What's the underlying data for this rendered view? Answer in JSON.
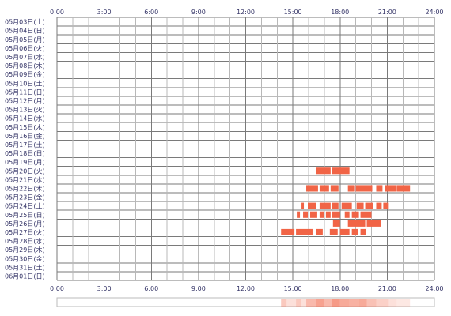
{
  "chart_data": {
    "type": "heatmap",
    "title": "",
    "xlabel": "",
    "ylabel": "",
    "x_ticks": [
      "0:00",
      "3:00",
      "6:00",
      "9:00",
      "12:00",
      "15:00",
      "18:00",
      "21:00",
      "24:00"
    ],
    "xlim": [
      0,
      24
    ],
    "grid": true,
    "rows": [
      "05月03日(土)",
      "05月04日(日)",
      "05月05日(月)",
      "05月06日(火)",
      "05月07日(水)",
      "05月08日(木)",
      "05月09日(金)",
      "05月10日(土)",
      "05月11日(日)",
      "05月12日(月)",
      "05月13日(火)",
      "05月14日(水)",
      "05月15日(木)",
      "05月16日(金)",
      "05月17日(土)",
      "05月18日(日)",
      "05月19日(月)",
      "05月20日(火)",
      "05月21日(水)",
      "05月22日(木)",
      "05月23日(金)",
      "05月24日(土)",
      "05月25日(日)",
      "05月26日(月)",
      "05月27日(火)",
      "05月28日(水)",
      "05月29日(木)",
      "05月30日(金)",
      "05月31日(土)",
      "06月01日(日)"
    ],
    "activity": [
      {
        "row": 17,
        "start": 16.5,
        "end": 17.4
      },
      {
        "row": 17,
        "start": 17.5,
        "end": 18.6
      },
      {
        "row": 19,
        "start": 15.85,
        "end": 16.6
      },
      {
        "row": 19,
        "start": 16.7,
        "end": 17.3
      },
      {
        "row": 19,
        "start": 17.4,
        "end": 17.9
      },
      {
        "row": 19,
        "start": 18.5,
        "end": 18.95
      },
      {
        "row": 19,
        "start": 19.0,
        "end": 20.05
      },
      {
        "row": 19,
        "start": 20.3,
        "end": 20.7
      },
      {
        "row": 19,
        "start": 20.85,
        "end": 21.55
      },
      {
        "row": 19,
        "start": 21.6,
        "end": 22.45
      },
      {
        "row": 21,
        "start": 15.55,
        "end": 15.7
      },
      {
        "row": 21,
        "start": 15.95,
        "end": 16.5
      },
      {
        "row": 21,
        "start": 16.7,
        "end": 17.4
      },
      {
        "row": 21,
        "start": 17.5,
        "end": 17.9
      },
      {
        "row": 21,
        "start": 18.1,
        "end": 18.75
      },
      {
        "row": 21,
        "start": 19.05,
        "end": 19.5
      },
      {
        "row": 21,
        "start": 19.6,
        "end": 20.1
      },
      {
        "row": 21,
        "start": 20.3,
        "end": 20.65
      },
      {
        "row": 21,
        "start": 20.75,
        "end": 21.1
      },
      {
        "row": 22,
        "start": 15.25,
        "end": 15.45
      },
      {
        "row": 22,
        "start": 15.65,
        "end": 15.95
      },
      {
        "row": 22,
        "start": 16.1,
        "end": 16.55
      },
      {
        "row": 22,
        "start": 16.7,
        "end": 17.0
      },
      {
        "row": 22,
        "start": 17.1,
        "end": 17.4
      },
      {
        "row": 22,
        "start": 17.5,
        "end": 18.0
      },
      {
        "row": 22,
        "start": 18.3,
        "end": 18.6
      },
      {
        "row": 22,
        "start": 18.75,
        "end": 19.2
      },
      {
        "row": 22,
        "start": 19.3,
        "end": 20.0
      },
      {
        "row": 23,
        "start": 17.55,
        "end": 18.0
      },
      {
        "row": 23,
        "start": 18.5,
        "end": 19.6
      },
      {
        "row": 23,
        "start": 19.7,
        "end": 20.6
      },
      {
        "row": 24,
        "start": 14.25,
        "end": 15.1
      },
      {
        "row": 24,
        "start": 15.2,
        "end": 16.25
      },
      {
        "row": 24,
        "start": 16.5,
        "end": 16.9
      },
      {
        "row": 24,
        "start": 17.35,
        "end": 17.85
      },
      {
        "row": 24,
        "start": 18.0,
        "end": 18.6
      },
      {
        "row": 24,
        "start": 18.75,
        "end": 19.15
      },
      {
        "row": 24,
        "start": 19.3,
        "end": 19.65
      }
    ],
    "summary_strip": [
      {
        "start": 14.25,
        "end": 14.6,
        "intensity": 0.35
      },
      {
        "start": 14.6,
        "end": 15.2,
        "intensity": 0.2
      },
      {
        "start": 15.2,
        "end": 15.5,
        "intensity": 0.35
      },
      {
        "start": 15.5,
        "end": 15.85,
        "intensity": 0.2
      },
      {
        "start": 15.85,
        "end": 16.5,
        "intensity": 0.45
      },
      {
        "start": 16.5,
        "end": 17.0,
        "intensity": 0.6
      },
      {
        "start": 17.0,
        "end": 17.5,
        "intensity": 0.45
      },
      {
        "start": 17.5,
        "end": 18.0,
        "intensity": 0.65
      },
      {
        "start": 18.0,
        "end": 18.6,
        "intensity": 0.55
      },
      {
        "start": 18.6,
        "end": 19.2,
        "intensity": 0.5
      },
      {
        "start": 19.2,
        "end": 19.7,
        "intensity": 0.55
      },
      {
        "start": 19.7,
        "end": 20.3,
        "intensity": 0.4
      },
      {
        "start": 20.3,
        "end": 21.1,
        "intensity": 0.3
      },
      {
        "start": 21.1,
        "end": 21.6,
        "intensity": 0.2
      },
      {
        "start": 21.6,
        "end": 22.45,
        "intensity": 0.15
      }
    ],
    "colors": {
      "activity": "#f16446",
      "grid_major": "#7a7a7a",
      "grid_minor": "#b8b8b8",
      "label": "#333366",
      "strip_base": "#f8e8e4",
      "strip_border": "#bbbbbb"
    }
  }
}
